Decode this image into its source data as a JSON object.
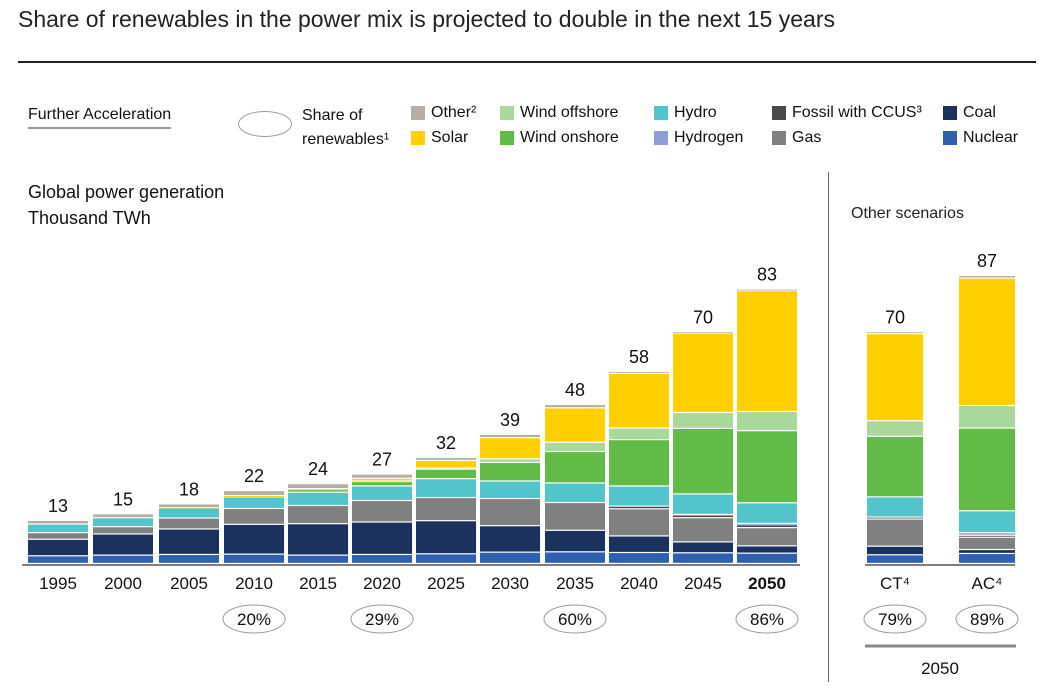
{
  "title": "Share of renewables in the power mix is projected to double in the next 15 years",
  "scenario_label": "Further Acceleration",
  "share_legend_label": "Share of renewables¹",
  "legend": [
    {
      "name": "Other²",
      "color": "#b8ada3"
    },
    {
      "name": "Solar",
      "color": "#ffcf00"
    },
    {
      "name": "Wind offshore",
      "color": "#a8d99a"
    },
    {
      "name": "Wind onshore",
      "color": "#62bb46"
    },
    {
      "name": "Hydro",
      "color": "#52c4cc"
    },
    {
      "name": "Hydrogen",
      "color": "#8f9fd6"
    },
    {
      "name": "Fossil with CCUS³",
      "color": "#4a4a4a"
    },
    {
      "name": "Gas",
      "color": "#808080"
    },
    {
      "name": "Coal",
      "color": "#1b325f"
    },
    {
      "name": "Nuclear",
      "color": "#2f5fb0"
    }
  ],
  "other_scenarios_label": "Other scenarios",
  "group_label_2050": "2050",
  "chart_data": {
    "type": "bar",
    "stacked": true,
    "title": "Global power generation",
    "ylabel": "Thousand TWh",
    "stack_order": [
      "Nuclear",
      "Coal",
      "Gas",
      "Fossil with CCUS³",
      "Hydrogen",
      "Hydro",
      "Wind onshore",
      "Wind offshore",
      "Solar",
      "Other²"
    ],
    "categories": [
      "1995",
      "2000",
      "2005",
      "2010",
      "2015",
      "2020",
      "2025",
      "2030",
      "2035",
      "2040",
      "2045",
      "2050",
      "CT⁴",
      "AC⁴"
    ],
    "bold_category": "2050",
    "totals": [
      13,
      15,
      18,
      22,
      24,
      27,
      32,
      39,
      48,
      58,
      70,
      83,
      70,
      87
    ],
    "share_of_renewables": {
      "2010": "20%",
      "2020": "29%",
      "2035": "60%",
      "2050": "86%",
      "CT⁴": "79%",
      "AC⁴": "89%"
    },
    "series": [
      {
        "name": "Nuclear",
        "values": [
          2.3,
          2.5,
          2.7,
          2.8,
          2.5,
          2.7,
          2.9,
          3.4,
          3.5,
          3.3,
          3.2,
          3.1,
          2.6,
          3.0
        ]
      },
      {
        "name": "Coal",
        "values": [
          5.0,
          6.4,
          7.7,
          9.0,
          9.5,
          9.8,
          10.0,
          8.0,
          6.5,
          5.0,
          3.3,
          2.2,
          2.6,
          1.2
        ]
      },
      {
        "name": "Gas",
        "values": [
          2.0,
          2.2,
          3.3,
          4.8,
          5.5,
          6.5,
          7.0,
          8.2,
          8.4,
          8.2,
          7.3,
          5.5,
          8.2,
          3.7
        ]
      },
      {
        "name": "Fossil with CCUS³",
        "values": [
          0,
          0,
          0,
          0,
          0,
          0,
          0,
          0,
          0,
          0.8,
          0.8,
          0.9,
          0.6,
          0.6
        ]
      },
      {
        "name": "Hydrogen",
        "values": [
          0,
          0,
          0,
          0,
          0,
          0,
          0,
          0,
          0,
          0,
          0.2,
          0.4,
          0,
          0.8
        ]
      },
      {
        "name": "Hydro",
        "values": [
          2.6,
          2.7,
          2.9,
          3.4,
          4.0,
          4.4,
          5.7,
          5.3,
          5.9,
          6.1,
          6.2,
          6.2,
          6.1,
          6.6
        ]
      },
      {
        "name": "Wind onshore",
        "values": [
          0,
          0,
          0.2,
          0.4,
          0.8,
          1.4,
          2.8,
          5.6,
          9.5,
          14.0,
          19.8,
          21.8,
          18.3,
          25.0
        ]
      },
      {
        "name": "Wind offshore",
        "values": [
          0,
          0,
          0,
          0,
          0,
          0.1,
          0.4,
          1.1,
          2.8,
          3.5,
          4.8,
          5.8,
          4.7,
          6.8
        ]
      },
      {
        "name": "Solar",
        "values": [
          0,
          0,
          0,
          0.1,
          0.3,
          0.8,
          2.3,
          6.4,
          10.4,
          16.5,
          24.0,
          36.5,
          26.3,
          38.5
        ]
      },
      {
        "name": "Other²",
        "values": [
          1.1,
          1.2,
          1.2,
          1.5,
          1.5,
          1.3,
          0.9,
          1.0,
          1.0,
          0.6,
          0.4,
          0.5,
          0.6,
          0.8
        ]
      }
    ]
  }
}
